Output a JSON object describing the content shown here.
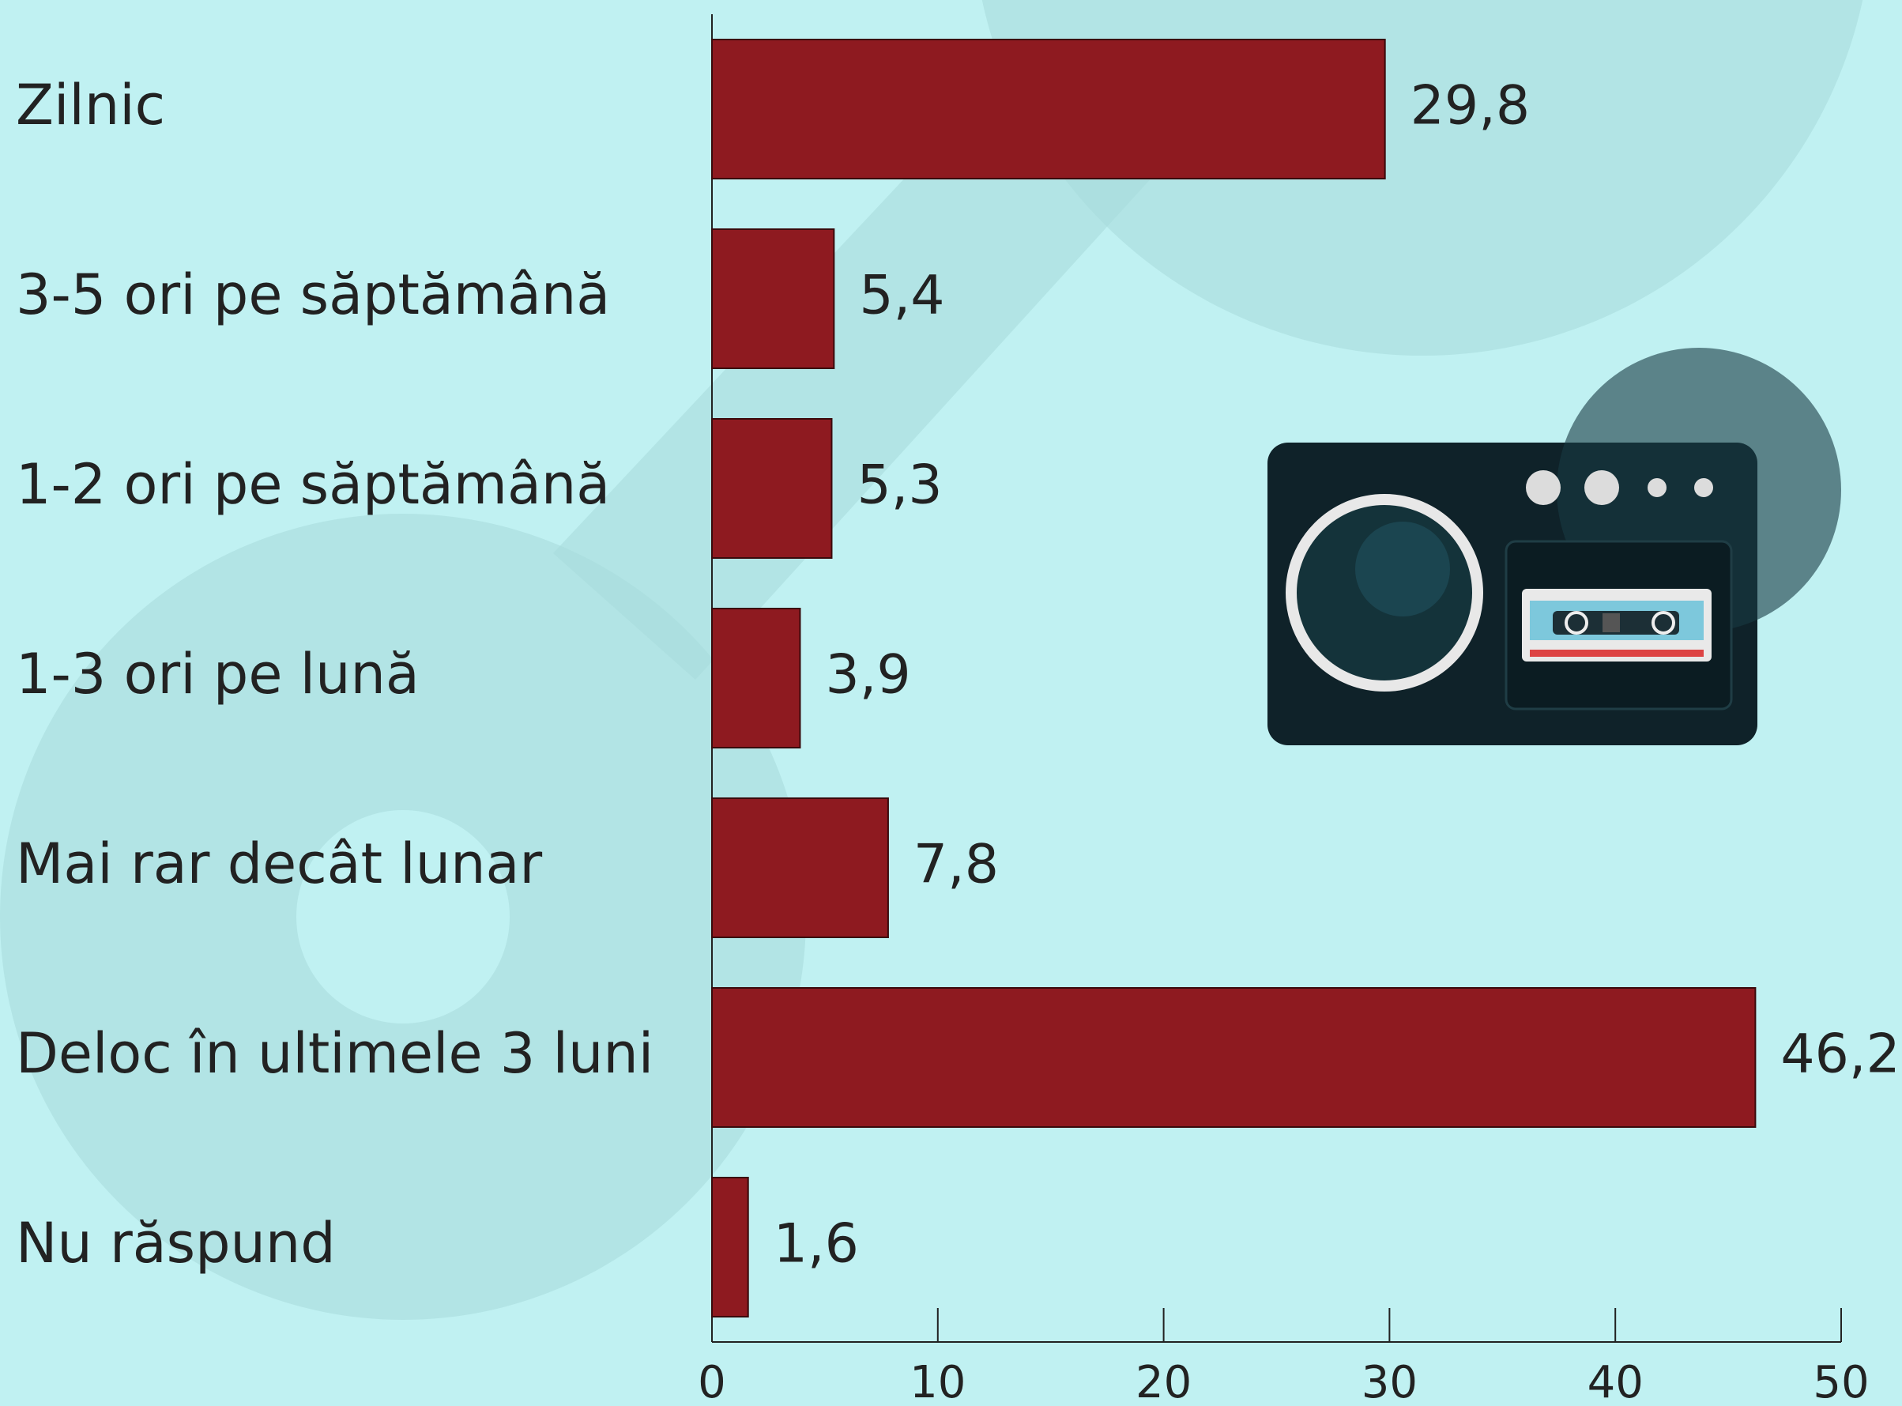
{
  "chart_data": {
    "type": "bar",
    "orientation": "horizontal",
    "categories": [
      "Zilnic",
      "3-5 ori pe săptămână",
      "1-2 ori pe săptămână",
      "1-3 ori pe lună",
      "Mai rar decât lunar",
      "Deloc în ultimele 3 luni",
      "Nu răspund"
    ],
    "values": [
      29.8,
      5.4,
      5.3,
      3.9,
      7.8,
      46.2,
      1.6
    ],
    "value_labels": [
      "29,8",
      "5,4",
      "5,3",
      "3,9",
      "7,8",
      "46,2",
      "1,6"
    ],
    "color": "#8e1a20",
    "xlim": [
      0,
      50
    ],
    "xticks": [
      0,
      10,
      20,
      30,
      40,
      50
    ]
  }
}
